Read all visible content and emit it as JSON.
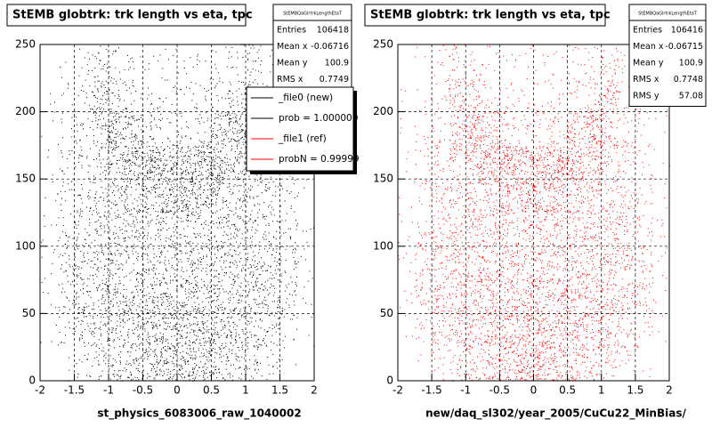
{
  "chart_data": [
    {
      "type": "hist2d",
      "title": "StEMB globtrk: trk length vs eta, tpc",
      "xlabel": "st_physics_6083006_raw_1040002",
      "color": "#000000",
      "xlim": [
        -2,
        2
      ],
      "ylim": [
        0,
        250
      ],
      "xticks": [
        -2,
        -1.5,
        -1,
        -0.5,
        0,
        0.5,
        1,
        1.5,
        2
      ],
      "yticks": [
        0,
        50,
        100,
        150,
        200,
        250
      ],
      "grid": true,
      "xbins": [
        -2,
        -1.75,
        -1.5,
        -1.25,
        -1,
        -0.75,
        -0.5,
        -0.25,
        0,
        0.25,
        0.5,
        0.75,
        1,
        1.25,
        1.5,
        1.75,
        2
      ],
      "ybins": [
        0,
        25,
        50,
        75,
        100,
        125,
        150,
        175,
        200,
        225,
        250
      ],
      "counts": [
        [
          0,
          1,
          4,
          8,
          12,
          16,
          20,
          24,
          24,
          20,
          16,
          12,
          8,
          4,
          1,
          0
        ],
        [
          1,
          4,
          10,
          14,
          16,
          18,
          20,
          22,
          22,
          20,
          18,
          16,
          14,
          10,
          4,
          1
        ],
        [
          2,
          8,
          14,
          16,
          16,
          16,
          18,
          18,
          18,
          18,
          16,
          16,
          16,
          14,
          8,
          2
        ],
        [
          2,
          8,
          12,
          14,
          14,
          14,
          14,
          14,
          14,
          14,
          14,
          14,
          14,
          12,
          8,
          2
        ],
        [
          2,
          6,
          10,
          12,
          14,
          14,
          12,
          12,
          12,
          12,
          14,
          14,
          12,
          10,
          6,
          2
        ],
        [
          1,
          5,
          8,
          10,
          14,
          16,
          20,
          26,
          26,
          20,
          16,
          14,
          10,
          8,
          5,
          1
        ],
        [
          1,
          4,
          6,
          10,
          18,
          26,
          30,
          24,
          24,
          30,
          26,
          18,
          10,
          6,
          4,
          1
        ],
        [
          1,
          3,
          5,
          14,
          26,
          18,
          8,
          6,
          6,
          8,
          18,
          26,
          14,
          5,
          3,
          1
        ],
        [
          1,
          2,
          4,
          16,
          10,
          5,
          4,
          3,
          3,
          4,
          5,
          10,
          16,
          4,
          2,
          1
        ],
        [
          0,
          1,
          3,
          8,
          4,
          3,
          2,
          2,
          2,
          2,
          3,
          4,
          8,
          3,
          1,
          0
        ]
      ],
      "stats": {
        "name": "StEMBQaGlrtrkLengthEtaT",
        "entries": [
          {
            "label": "Entries",
            "value": 106418
          },
          {
            "label": "Mean x",
            "value": -0.06716
          },
          {
            "label": "Mean y",
            "value": 100.9
          },
          {
            "label": "RMS x",
            "value": 0.7749
          }
        ]
      },
      "legend": [
        {
          "label": "_file0 (new)",
          "color": "#000000"
        },
        {
          "label": "prob = 1.000000",
          "color": "#000000"
        },
        {
          "label": "_file1 (ref)",
          "color": "#ff0000"
        },
        {
          "label": "probN = 0.99999",
          "color": "#ff0000"
        }
      ]
    },
    {
      "type": "hist2d",
      "title": "StEMB globtrk: trk length vs eta, tpc",
      "xlabel": "new/daq_sl302/year_2005/CuCu22_MinBias/",
      "color": "#ff0000",
      "xlim": [
        -2,
        2
      ],
      "ylim": [
        0,
        250
      ],
      "xticks": [
        -2,
        -1.5,
        -1,
        -0.5,
        0,
        0.5,
        1,
        1.5,
        2
      ],
      "yticks": [
        0,
        50,
        100,
        150,
        200,
        250
      ],
      "grid": true,
      "xbins": [
        -2,
        -1.75,
        -1.5,
        -1.25,
        -1,
        -0.75,
        -0.5,
        -0.25,
        0,
        0.25,
        0.5,
        0.75,
        1,
        1.25,
        1.5,
        1.75,
        2
      ],
      "ybins": [
        0,
        25,
        50,
        75,
        100,
        125,
        150,
        175,
        200,
        225,
        250
      ],
      "counts": [
        [
          0,
          1,
          4,
          8,
          12,
          16,
          20,
          24,
          24,
          20,
          16,
          12,
          8,
          4,
          1,
          0
        ],
        [
          1,
          4,
          10,
          14,
          16,
          18,
          20,
          22,
          22,
          20,
          18,
          16,
          14,
          10,
          4,
          1
        ],
        [
          2,
          8,
          14,
          16,
          16,
          16,
          18,
          18,
          18,
          18,
          16,
          16,
          16,
          14,
          8,
          2
        ],
        [
          2,
          8,
          12,
          14,
          14,
          14,
          14,
          14,
          14,
          14,
          14,
          14,
          14,
          12,
          8,
          2
        ],
        [
          2,
          6,
          10,
          12,
          14,
          14,
          12,
          12,
          12,
          12,
          14,
          14,
          12,
          10,
          6,
          2
        ],
        [
          1,
          5,
          8,
          10,
          14,
          16,
          20,
          26,
          26,
          20,
          16,
          14,
          10,
          8,
          5,
          1
        ],
        [
          1,
          4,
          6,
          10,
          18,
          26,
          30,
          24,
          24,
          30,
          26,
          18,
          10,
          6,
          4,
          1
        ],
        [
          1,
          3,
          5,
          14,
          26,
          18,
          8,
          6,
          6,
          8,
          18,
          26,
          14,
          5,
          3,
          1
        ],
        [
          1,
          2,
          4,
          16,
          10,
          5,
          4,
          3,
          3,
          4,
          5,
          10,
          16,
          4,
          2,
          1
        ],
        [
          0,
          1,
          3,
          8,
          4,
          3,
          2,
          2,
          2,
          2,
          3,
          4,
          8,
          3,
          1,
          0
        ]
      ],
      "stats": {
        "name": "StEMBQaGlrtrkLengthEtaT",
        "entries": [
          {
            "label": "Entries",
            "value": 106416
          },
          {
            "label": "Mean x",
            "value": -0.06715
          },
          {
            "label": "Mean y",
            "value": 100.9
          },
          {
            "label": "RMS x",
            "value": 0.7748
          },
          {
            "label": "RMS y",
            "value": 57.08
          }
        ]
      }
    }
  ]
}
